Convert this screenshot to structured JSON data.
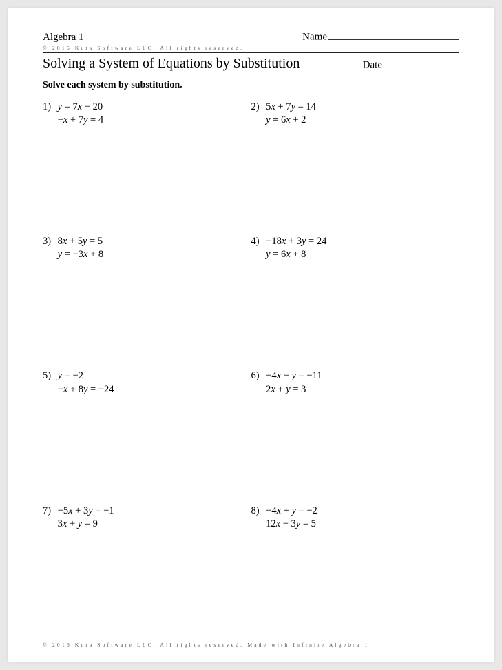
{
  "header": {
    "course": "Algebra 1",
    "name_label": "Name",
    "copyright_top": "© 2016 Kuta Software LLC. All rights reserved."
  },
  "title": "Solving a System of Equations by Substitution",
  "date_label": "Date",
  "instructions": "Solve each system by substitution.",
  "problems": [
    {
      "n": "1)",
      "eq1": "y = 7x − 20",
      "eq2": "−x + 7y = 4"
    },
    {
      "n": "2)",
      "eq1": "5x + 7y = 14",
      "eq2": "y = 6x + 2"
    },
    {
      "n": "3)",
      "eq1": "8x + 5y = 5",
      "eq2": "y = −3x + 8"
    },
    {
      "n": "4)",
      "eq1": "−18x + 3y = 24",
      "eq2": "y = 6x + 8"
    },
    {
      "n": "5)",
      "eq1": "y = −2",
      "eq2": "−x + 8y = −24"
    },
    {
      "n": "6)",
      "eq1": "−4x − y = −11",
      "eq2": "2x + y = 3"
    },
    {
      "n": "7)",
      "eq1": "−5x + 3y = −1",
      "eq2": "3x + y = 9"
    },
    {
      "n": "8)",
      "eq1": "−4x + y = −2",
      "eq2": "12x − 3y = 5"
    }
  ],
  "footer": "© 2016 Kuta Software LLC. All rights reserved. Made with Infinite Algebra 1."
}
